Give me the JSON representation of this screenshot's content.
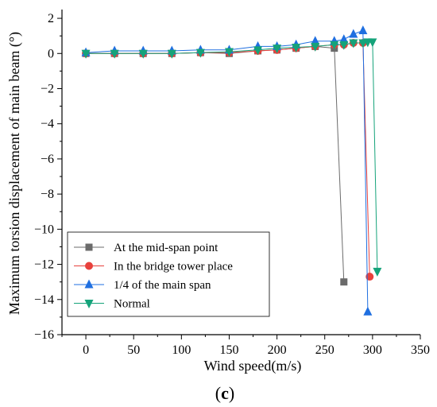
{
  "chart_data": {
    "type": "line",
    "title": "",
    "xlabel": "Wind speed(m/s)",
    "ylabel": "Maximum torsion displacement of main beam (°)",
    "xlim": [
      -25,
      350
    ],
    "ylim": [
      -16,
      2.5
    ],
    "xticks": [
      0,
      50,
      100,
      150,
      200,
      250,
      300,
      350
    ],
    "yticks": [
      2,
      0,
      -2,
      -4,
      -6,
      -8,
      -10,
      -12,
      -14,
      -16
    ],
    "grid": false,
    "legend_position": "bottom-left",
    "panel_label": {
      "prefix": "(",
      "letter": "c",
      "suffix": ")"
    },
    "series": [
      {
        "name": "At the mid-span point",
        "color": "#6b6b6b",
        "marker": "square",
        "points": [
          [
            0,
            0
          ],
          [
            30,
            0
          ],
          [
            60,
            0
          ],
          [
            90,
            0
          ],
          [
            120,
            0.05
          ],
          [
            150,
            0
          ],
          [
            180,
            0.15
          ],
          [
            200,
            0.2
          ],
          [
            220,
            0.3
          ],
          [
            240,
            0.4
          ],
          [
            260,
            0.3
          ],
          [
            270,
            -13
          ]
        ]
      },
      {
        "name": "In the bridge tower place",
        "color": "#e8413c",
        "marker": "circle",
        "points": [
          [
            0,
            0
          ],
          [
            30,
            0
          ],
          [
            60,
            0
          ],
          [
            90,
            0
          ],
          [
            120,
            0.05
          ],
          [
            150,
            0.05
          ],
          [
            180,
            0.15
          ],
          [
            200,
            0.2
          ],
          [
            220,
            0.3
          ],
          [
            240,
            0.4
          ],
          [
            260,
            0.5
          ],
          [
            270,
            0.5
          ],
          [
            280,
            0.6
          ],
          [
            290,
            0.6
          ],
          [
            297,
            -12.7
          ]
        ]
      },
      {
        "name": "1/4 of the main span",
        "color": "#1f6fe0",
        "marker": "triangle-up",
        "points": [
          [
            0,
            0.05
          ],
          [
            30,
            0.15
          ],
          [
            60,
            0.15
          ],
          [
            90,
            0.15
          ],
          [
            120,
            0.2
          ],
          [
            150,
            0.2
          ],
          [
            180,
            0.4
          ],
          [
            200,
            0.4
          ],
          [
            220,
            0.5
          ],
          [
            240,
            0.7
          ],
          [
            260,
            0.7
          ],
          [
            270,
            0.8
          ],
          [
            280,
            1.1
          ],
          [
            290,
            1.3
          ],
          [
            295,
            -14.7
          ]
        ]
      },
      {
        "name": "Normal",
        "color": "#15a37a",
        "marker": "triangle-down",
        "points": [
          [
            0,
            0
          ],
          [
            30,
            0
          ],
          [
            60,
            0
          ],
          [
            90,
            0
          ],
          [
            120,
            0.05
          ],
          [
            150,
            0.1
          ],
          [
            180,
            0.2
          ],
          [
            200,
            0.3
          ],
          [
            220,
            0.35
          ],
          [
            240,
            0.4
          ],
          [
            260,
            0.5
          ],
          [
            270,
            0.5
          ],
          [
            280,
            0.6
          ],
          [
            290,
            0.6
          ],
          [
            295,
            0.65
          ],
          [
            300,
            0.65
          ],
          [
            305,
            -12.4
          ]
        ]
      }
    ]
  }
}
